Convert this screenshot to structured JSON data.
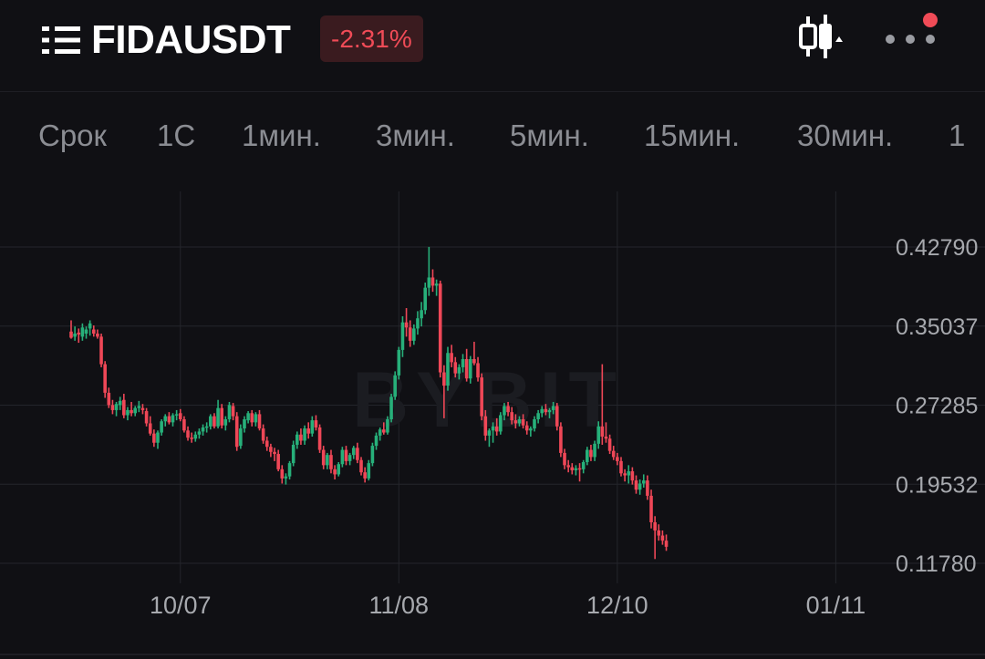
{
  "header": {
    "pair": "FIDAUSDT",
    "change": "-2.31%",
    "menu_icon": "list-icon",
    "chart_type_icon": "candlestick-icon",
    "more_icon": "more-dots-icon",
    "notification_color": "#f04b57"
  },
  "tabs": [
    {
      "label": "Срок"
    },
    {
      "label": "1С"
    },
    {
      "label": "1мин."
    },
    {
      "label": "3мин."
    },
    {
      "label": "5мин."
    },
    {
      "label": "15мин."
    },
    {
      "label": "30мин."
    },
    {
      "label": "1"
    }
  ],
  "colors": {
    "up": "#27b07a",
    "down": "#ef4757",
    "background": "#101014",
    "grid": "#24252b",
    "text": "#a7a9ae"
  },
  "chart_data": {
    "type": "candlestick",
    "watermark": "BYBIT",
    "y_ticks": [
      "0.42790",
      "0.35037",
      "0.27285",
      "0.19532",
      "0.11780"
    ],
    "y_tick_values": [
      0.4279,
      0.35037,
      0.27285,
      0.19532,
      0.1178
    ],
    "x_ticks": [
      "10/07",
      "11/08",
      "12/10",
      "01/11"
    ],
    "x_tick_candle_index": [
      29,
      87,
      145,
      203
    ],
    "ylim": [
      0.1,
      0.47
    ],
    "candles": [
      {
        "o": 0.345,
        "h": 0.356,
        "l": 0.338,
        "c": 0.339
      },
      {
        "o": 0.34,
        "h": 0.35,
        "l": 0.336,
        "c": 0.343
      },
      {
        "o": 0.344,
        "h": 0.348,
        "l": 0.334,
        "c": 0.342
      },
      {
        "o": 0.34,
        "h": 0.353,
        "l": 0.336,
        "c": 0.349
      },
      {
        "o": 0.343,
        "h": 0.35,
        "l": 0.338,
        "c": 0.347
      },
      {
        "o": 0.348,
        "h": 0.356,
        "l": 0.341,
        "c": 0.353
      },
      {
        "o": 0.347,
        "h": 0.351,
        "l": 0.34,
        "c": 0.343
      },
      {
        "o": 0.343,
        "h": 0.347,
        "l": 0.338,
        "c": 0.34
      },
      {
        "o": 0.34,
        "h": 0.343,
        "l": 0.31,
        "c": 0.313
      },
      {
        "o": 0.313,
        "h": 0.316,
        "l": 0.28,
        "c": 0.285
      },
      {
        "o": 0.285,
        "h": 0.29,
        "l": 0.27,
        "c": 0.273
      },
      {
        "o": 0.273,
        "h": 0.278,
        "l": 0.264,
        "c": 0.268
      },
      {
        "o": 0.268,
        "h": 0.276,
        "l": 0.262,
        "c": 0.274
      },
      {
        "o": 0.273,
        "h": 0.281,
        "l": 0.268,
        "c": 0.277
      },
      {
        "o": 0.278,
        "h": 0.284,
        "l": 0.26,
        "c": 0.263
      },
      {
        "o": 0.263,
        "h": 0.271,
        "l": 0.258,
        "c": 0.268
      },
      {
        "o": 0.268,
        "h": 0.276,
        "l": 0.262,
        "c": 0.265
      },
      {
        "o": 0.265,
        "h": 0.272,
        "l": 0.262,
        "c": 0.27
      },
      {
        "o": 0.27,
        "h": 0.277,
        "l": 0.266,
        "c": 0.272
      },
      {
        "o": 0.27,
        "h": 0.274,
        "l": 0.264,
        "c": 0.268
      },
      {
        "o": 0.267,
        "h": 0.27,
        "l": 0.252,
        "c": 0.255
      },
      {
        "o": 0.255,
        "h": 0.262,
        "l": 0.243,
        "c": 0.245
      },
      {
        "o": 0.245,
        "h": 0.249,
        "l": 0.232,
        "c": 0.236
      },
      {
        "o": 0.236,
        "h": 0.248,
        "l": 0.23,
        "c": 0.246
      },
      {
        "o": 0.246,
        "h": 0.259,
        "l": 0.243,
        "c": 0.257
      },
      {
        "o": 0.257,
        "h": 0.264,
        "l": 0.252,
        "c": 0.262
      },
      {
        "o": 0.262,
        "h": 0.266,
        "l": 0.254,
        "c": 0.256
      },
      {
        "o": 0.256,
        "h": 0.265,
        "l": 0.252,
        "c": 0.263
      },
      {
        "o": 0.263,
        "h": 0.268,
        "l": 0.258,
        "c": 0.264
      },
      {
        "o": 0.265,
        "h": 0.269,
        "l": 0.257,
        "c": 0.259
      },
      {
        "o": 0.259,
        "h": 0.262,
        "l": 0.246,
        "c": 0.248
      },
      {
        "o": 0.248,
        "h": 0.252,
        "l": 0.238,
        "c": 0.241
      },
      {
        "o": 0.241,
        "h": 0.246,
        "l": 0.236,
        "c": 0.24
      },
      {
        "o": 0.24,
        "h": 0.247,
        "l": 0.237,
        "c": 0.244
      },
      {
        "o": 0.244,
        "h": 0.25,
        "l": 0.24,
        "c": 0.247
      },
      {
        "o": 0.247,
        "h": 0.254,
        "l": 0.243,
        "c": 0.251
      },
      {
        "o": 0.251,
        "h": 0.256,
        "l": 0.246,
        "c": 0.252
      },
      {
        "o": 0.252,
        "h": 0.264,
        "l": 0.249,
        "c": 0.262
      },
      {
        "o": 0.262,
        "h": 0.265,
        "l": 0.25,
        "c": 0.252
      },
      {
        "o": 0.252,
        "h": 0.278,
        "l": 0.25,
        "c": 0.27
      },
      {
        "o": 0.27,
        "h": 0.274,
        "l": 0.25,
        "c": 0.253
      },
      {
        "o": 0.253,
        "h": 0.262,
        "l": 0.248,
        "c": 0.259
      },
      {
        "o": 0.259,
        "h": 0.276,
        "l": 0.256,
        "c": 0.273
      },
      {
        "o": 0.272,
        "h": 0.275,
        "l": 0.258,
        "c": 0.262
      },
      {
        "o": 0.262,
        "h": 0.266,
        "l": 0.228,
        "c": 0.232
      },
      {
        "o": 0.233,
        "h": 0.254,
        "l": 0.23,
        "c": 0.25
      },
      {
        "o": 0.25,
        "h": 0.262,
        "l": 0.246,
        "c": 0.259
      },
      {
        "o": 0.258,
        "h": 0.267,
        "l": 0.255,
        "c": 0.265
      },
      {
        "o": 0.265,
        "h": 0.268,
        "l": 0.252,
        "c": 0.256
      },
      {
        "o": 0.256,
        "h": 0.266,
        "l": 0.252,
        "c": 0.264
      },
      {
        "o": 0.264,
        "h": 0.268,
        "l": 0.248,
        "c": 0.25
      },
      {
        "o": 0.25,
        "h": 0.254,
        "l": 0.235,
        "c": 0.238
      },
      {
        "o": 0.238,
        "h": 0.242,
        "l": 0.228,
        "c": 0.232
      },
      {
        "o": 0.232,
        "h": 0.235,
        "l": 0.222,
        "c": 0.227
      },
      {
        "o": 0.227,
        "h": 0.231,
        "l": 0.218,
        "c": 0.225
      },
      {
        "o": 0.225,
        "h": 0.229,
        "l": 0.208,
        "c": 0.21
      },
      {
        "o": 0.21,
        "h": 0.214,
        "l": 0.196,
        "c": 0.201
      },
      {
        "o": 0.201,
        "h": 0.206,
        "l": 0.195,
        "c": 0.203
      },
      {
        "o": 0.203,
        "h": 0.218,
        "l": 0.2,
        "c": 0.216
      },
      {
        "o": 0.216,
        "h": 0.238,
        "l": 0.213,
        "c": 0.234
      },
      {
        "o": 0.234,
        "h": 0.247,
        "l": 0.23,
        "c": 0.244
      },
      {
        "o": 0.244,
        "h": 0.25,
        "l": 0.234,
        "c": 0.238
      },
      {
        "o": 0.238,
        "h": 0.253,
        "l": 0.234,
        "c": 0.25
      },
      {
        "o": 0.25,
        "h": 0.256,
        "l": 0.24,
        "c": 0.245
      },
      {
        "o": 0.245,
        "h": 0.262,
        "l": 0.242,
        "c": 0.258
      },
      {
        "o": 0.258,
        "h": 0.263,
        "l": 0.248,
        "c": 0.251
      },
      {
        "o": 0.251,
        "h": 0.254,
        "l": 0.226,
        "c": 0.229
      },
      {
        "o": 0.229,
        "h": 0.233,
        "l": 0.21,
        "c": 0.214
      },
      {
        "o": 0.214,
        "h": 0.226,
        "l": 0.21,
        "c": 0.224
      },
      {
        "o": 0.224,
        "h": 0.229,
        "l": 0.206,
        "c": 0.21
      },
      {
        "o": 0.21,
        "h": 0.214,
        "l": 0.2,
        "c": 0.205
      },
      {
        "o": 0.205,
        "h": 0.217,
        "l": 0.203,
        "c": 0.215
      },
      {
        "o": 0.215,
        "h": 0.232,
        "l": 0.212,
        "c": 0.229
      },
      {
        "o": 0.229,
        "h": 0.233,
        "l": 0.214,
        "c": 0.218
      },
      {
        "o": 0.218,
        "h": 0.226,
        "l": 0.214,
        "c": 0.224
      },
      {
        "o": 0.224,
        "h": 0.233,
        "l": 0.22,
        "c": 0.231
      },
      {
        "o": 0.231,
        "h": 0.236,
        "l": 0.216,
        "c": 0.219
      },
      {
        "o": 0.219,
        "h": 0.222,
        "l": 0.204,
        "c": 0.207
      },
      {
        "o": 0.207,
        "h": 0.212,
        "l": 0.197,
        "c": 0.201
      },
      {
        "o": 0.201,
        "h": 0.219,
        "l": 0.199,
        "c": 0.216
      },
      {
        "o": 0.216,
        "h": 0.236,
        "l": 0.213,
        "c": 0.233
      },
      {
        "o": 0.233,
        "h": 0.246,
        "l": 0.229,
        "c": 0.243
      },
      {
        "o": 0.243,
        "h": 0.251,
        "l": 0.238,
        "c": 0.249
      },
      {
        "o": 0.249,
        "h": 0.256,
        "l": 0.244,
        "c": 0.246
      },
      {
        "o": 0.246,
        "h": 0.262,
        "l": 0.244,
        "c": 0.259
      },
      {
        "o": 0.259,
        "h": 0.284,
        "l": 0.256,
        "c": 0.281
      },
      {
        "o": 0.281,
        "h": 0.306,
        "l": 0.278,
        "c": 0.302
      },
      {
        "o": 0.302,
        "h": 0.33,
        "l": 0.298,
        "c": 0.327
      },
      {
        "o": 0.327,
        "h": 0.36,
        "l": 0.32,
        "c": 0.354
      },
      {
        "o": 0.354,
        "h": 0.368,
        "l": 0.34,
        "c": 0.349
      },
      {
        "o": 0.349,
        "h": 0.356,
        "l": 0.33,
        "c": 0.336
      },
      {
        "o": 0.336,
        "h": 0.352,
        "l": 0.332,
        "c": 0.348
      },
      {
        "o": 0.348,
        "h": 0.365,
        "l": 0.342,
        "c": 0.358
      },
      {
        "o": 0.358,
        "h": 0.374,
        "l": 0.35,
        "c": 0.366
      },
      {
        "o": 0.366,
        "h": 0.393,
        "l": 0.362,
        "c": 0.388
      },
      {
        "o": 0.388,
        "h": 0.428,
        "l": 0.38,
        "c": 0.398
      },
      {
        "o": 0.398,
        "h": 0.406,
        "l": 0.384,
        "c": 0.39
      },
      {
        "o": 0.39,
        "h": 0.396,
        "l": 0.38,
        "c": 0.392
      },
      {
        "o": 0.392,
        "h": 0.395,
        "l": 0.3,
        "c": 0.305
      },
      {
        "o": 0.305,
        "h": 0.312,
        "l": 0.26,
        "c": 0.292
      },
      {
        "o": 0.292,
        "h": 0.33,
        "l": 0.287,
        "c": 0.324
      },
      {
        "o": 0.324,
        "h": 0.332,
        "l": 0.31,
        "c": 0.315
      },
      {
        "o": 0.315,
        "h": 0.32,
        "l": 0.3,
        "c": 0.304
      },
      {
        "o": 0.304,
        "h": 0.313,
        "l": 0.298,
        "c": 0.31
      },
      {
        "o": 0.31,
        "h": 0.323,
        "l": 0.305,
        "c": 0.318
      },
      {
        "o": 0.318,
        "h": 0.328,
        "l": 0.296,
        "c": 0.299
      },
      {
        "o": 0.299,
        "h": 0.321,
        "l": 0.294,
        "c": 0.318
      },
      {
        "o": 0.318,
        "h": 0.335,
        "l": 0.312,
        "c": 0.314
      },
      {
        "o": 0.314,
        "h": 0.32,
        "l": 0.296,
        "c": 0.3
      },
      {
        "o": 0.3,
        "h": 0.304,
        "l": 0.258,
        "c": 0.262
      },
      {
        "o": 0.262,
        "h": 0.268,
        "l": 0.238,
        "c": 0.243
      },
      {
        "o": 0.243,
        "h": 0.25,
        "l": 0.232,
        "c": 0.248
      },
      {
        "o": 0.248,
        "h": 0.256,
        "l": 0.236,
        "c": 0.252
      },
      {
        "o": 0.252,
        "h": 0.26,
        "l": 0.243,
        "c": 0.247
      },
      {
        "o": 0.247,
        "h": 0.266,
        "l": 0.244,
        "c": 0.263
      },
      {
        "o": 0.263,
        "h": 0.275,
        "l": 0.258,
        "c": 0.272
      },
      {
        "o": 0.272,
        "h": 0.276,
        "l": 0.262,
        "c": 0.266
      },
      {
        "o": 0.266,
        "h": 0.271,
        "l": 0.254,
        "c": 0.258
      },
      {
        "o": 0.258,
        "h": 0.264,
        "l": 0.25,
        "c": 0.255
      },
      {
        "o": 0.255,
        "h": 0.262,
        "l": 0.252,
        "c": 0.259
      },
      {
        "o": 0.259,
        "h": 0.264,
        "l": 0.25,
        "c": 0.253
      },
      {
        "o": 0.253,
        "h": 0.257,
        "l": 0.244,
        "c": 0.248
      },
      {
        "o": 0.248,
        "h": 0.252,
        "l": 0.242,
        "c": 0.25
      },
      {
        "o": 0.25,
        "h": 0.262,
        "l": 0.247,
        "c": 0.259
      },
      {
        "o": 0.259,
        "h": 0.268,
        "l": 0.255,
        "c": 0.265
      },
      {
        "o": 0.265,
        "h": 0.272,
        "l": 0.261,
        "c": 0.269
      },
      {
        "o": 0.269,
        "h": 0.274,
        "l": 0.263,
        "c": 0.266
      },
      {
        "o": 0.266,
        "h": 0.27,
        "l": 0.26,
        "c": 0.268
      },
      {
        "o": 0.268,
        "h": 0.276,
        "l": 0.264,
        "c": 0.272
      },
      {
        "o": 0.272,
        "h": 0.275,
        "l": 0.248,
        "c": 0.252
      },
      {
        "o": 0.252,
        "h": 0.256,
        "l": 0.222,
        "c": 0.226
      },
      {
        "o": 0.226,
        "h": 0.23,
        "l": 0.21,
        "c": 0.214
      },
      {
        "o": 0.214,
        "h": 0.219,
        "l": 0.207,
        "c": 0.212
      },
      {
        "o": 0.212,
        "h": 0.216,
        "l": 0.205,
        "c": 0.209
      },
      {
        "o": 0.209,
        "h": 0.214,
        "l": 0.204,
        "c": 0.211
      },
      {
        "o": 0.211,
        "h": 0.216,
        "l": 0.198,
        "c": 0.21
      },
      {
        "o": 0.21,
        "h": 0.219,
        "l": 0.206,
        "c": 0.217
      },
      {
        "o": 0.217,
        "h": 0.232,
        "l": 0.214,
        "c": 0.229
      },
      {
        "o": 0.229,
        "h": 0.234,
        "l": 0.218,
        "c": 0.222
      },
      {
        "o": 0.222,
        "h": 0.238,
        "l": 0.218,
        "c": 0.235
      },
      {
        "o": 0.235,
        "h": 0.257,
        "l": 0.23,
        "c": 0.252
      },
      {
        "o": 0.252,
        "h": 0.313,
        "l": 0.234,
        "c": 0.242
      },
      {
        "o": 0.242,
        "h": 0.256,
        "l": 0.236,
        "c": 0.24
      },
      {
        "o": 0.24,
        "h": 0.244,
        "l": 0.225,
        "c": 0.228
      },
      {
        "o": 0.228,
        "h": 0.233,
        "l": 0.219,
        "c": 0.222
      },
      {
        "o": 0.222,
        "h": 0.226,
        "l": 0.214,
        "c": 0.218
      },
      {
        "o": 0.218,
        "h": 0.222,
        "l": 0.203,
        "c": 0.206
      },
      {
        "o": 0.206,
        "h": 0.21,
        "l": 0.198,
        "c": 0.204
      },
      {
        "o": 0.204,
        "h": 0.214,
        "l": 0.196,
        "c": 0.208
      },
      {
        "o": 0.208,
        "h": 0.212,
        "l": 0.195,
        "c": 0.199
      },
      {
        "o": 0.199,
        "h": 0.204,
        "l": 0.186,
        "c": 0.19
      },
      {
        "o": 0.19,
        "h": 0.2,
        "l": 0.185,
        "c": 0.196
      },
      {
        "o": 0.196,
        "h": 0.205,
        "l": 0.192,
        "c": 0.199
      },
      {
        "o": 0.199,
        "h": 0.204,
        "l": 0.18,
        "c": 0.184
      },
      {
        "o": 0.184,
        "h": 0.19,
        "l": 0.152,
        "c": 0.158
      },
      {
        "o": 0.158,
        "h": 0.164,
        "l": 0.122,
        "c": 0.15
      },
      {
        "o": 0.15,
        "h": 0.156,
        "l": 0.14,
        "c": 0.145
      },
      {
        "o": 0.145,
        "h": 0.15,
        "l": 0.136,
        "c": 0.14
      },
      {
        "o": 0.14,
        "h": 0.146,
        "l": 0.13,
        "c": 0.134
      }
    ]
  }
}
